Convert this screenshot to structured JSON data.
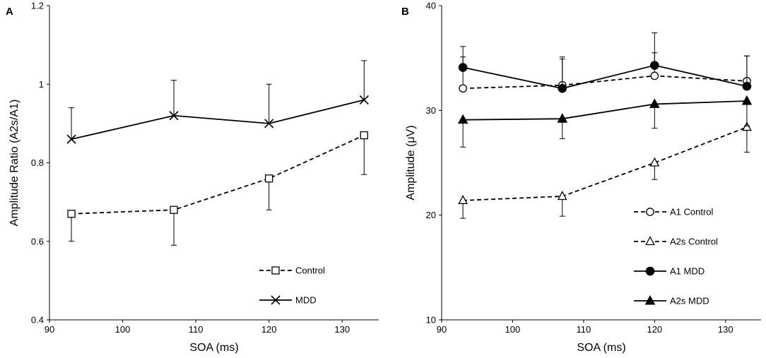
{
  "chart_data": [
    {
      "panel": "A",
      "type": "line",
      "xlabel": "SOA (ms)",
      "ylabel": "Amplitude Ratio (A2s/A1)",
      "xlim": [
        90,
        135
      ],
      "ylim": [
        0.4,
        1.2
      ],
      "xticks": [
        "90",
        "100",
        "110",
        "120",
        "130"
      ],
      "yticks": [
        "0.4",
        "0.6",
        "0.8",
        "1",
        "1.2"
      ],
      "x": [
        93,
        107,
        120,
        133
      ],
      "series": [
        {
          "name": "Control",
          "values": [
            0.67,
            0.68,
            0.76,
            0.87
          ],
          "err": [
            0.07,
            0.09,
            0.08,
            0.1
          ],
          "err_dir": "down",
          "dash": true,
          "marker": "square-open"
        },
        {
          "name": "MDD",
          "values": [
            0.86,
            0.92,
            0.9,
            0.96
          ],
          "err": [
            0.08,
            0.09,
            0.1,
            0.1
          ],
          "err_dir": "up",
          "dash": false,
          "marker": "x"
        }
      ],
      "legend_position": "bottom-right"
    },
    {
      "panel": "B",
      "type": "line",
      "xlabel": "SOA (ms)",
      "ylabel": "Amplitude  (μV)",
      "xlim": [
        90,
        135
      ],
      "ylim": [
        10,
        40
      ],
      "xticks": [
        "90",
        "100",
        "110",
        "120",
        "130"
      ],
      "yticks": [
        "10",
        "20",
        "30",
        "40"
      ],
      "x": [
        93,
        107,
        120,
        133
      ],
      "series": [
        {
          "name": "A1 Control",
          "values": [
            32.1,
            32.4,
            33.3,
            32.8
          ],
          "err": [
            3.0,
            2.5,
            2.2,
            2.4
          ],
          "err_dir": "up",
          "dash": true,
          "marker": "circle-open"
        },
        {
          "name": "A2s Control",
          "values": [
            21.4,
            21.8,
            25.0,
            28.4
          ],
          "err": [
            1.7,
            1.9,
            1.6,
            2.4
          ],
          "err_dir": "down",
          "dash": true,
          "marker": "triangle-open"
        },
        {
          "name": "A1 MDD",
          "values": [
            34.1,
            32.1,
            34.3,
            32.3
          ],
          "err": [
            2.0,
            3.0,
            3.1,
            2.9
          ],
          "err_dir": "up",
          "dash": false,
          "marker": "circle-filled"
        },
        {
          "name": "A2s MDD",
          "values": [
            29.1,
            29.2,
            30.6,
            30.9
          ],
          "err": [
            2.6,
            1.9,
            2.3,
            2.4
          ],
          "err_dir": "down",
          "dash": false,
          "marker": "triangle-filled"
        }
      ],
      "legend_position": "bottom-right"
    }
  ]
}
